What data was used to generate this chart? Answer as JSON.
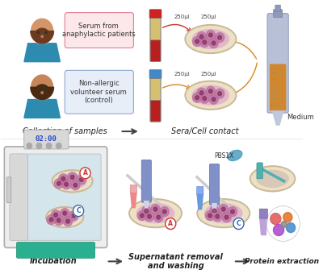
{
  "bg_color": "#ffffff",
  "figure_width": 4.0,
  "figure_height": 3.45,
  "dpi": 100,
  "label_collection_samples": "Collection of samples",
  "label_sera_cell": "Sera/Cell contact",
  "label_incubation": "Incubation",
  "label_supernatant": "Supernatant removal\nand washing",
  "label_protein": "Protein extraction",
  "label_medium": "Medium",
  "label_pbs": "PBS1X",
  "box1_text": "Serum from\nanaphylactic patients",
  "box1_facecolor": "#fce8ea",
  "box1_edgecolor": "#e08090",
  "box2_text": "Non-allergic\nvolunteer serum\n(control)",
  "box2_facecolor": "#e8eef8",
  "box2_edgecolor": "#90aad0",
  "label_250": "250μl",
  "label_A": "A",
  "label_C": "C",
  "arrow_color": "#444444",
  "text_fontsize": 6.5,
  "label_fontsize": 8.0,
  "small_fontsize": 5.0,
  "circle_A_color": "#cc3333",
  "circle_C_color": "#3366aa",
  "skin1": "#d4956a",
  "skin2": "#c8855a",
  "hair1": "#6b3a1f",
  "hair2": "#4a2a10",
  "shirt_color": "#2e8bb0",
  "tube1_top": "#b82020",
  "tube1_mid": "#d4c070",
  "tube1_cap": "#cc2222",
  "tube2_top": "#b82020",
  "tube2_mid": "#d4c070",
  "tube2_cap": "#4488cc",
  "petri_outer": "#ede0c4",
  "petri_inner": "#e0b8c8",
  "cell_color": "#c080a0",
  "pipette_body": "#8090c8",
  "pipette_liquid": "#d08830",
  "incubator_body": "#e8e8e8",
  "incubator_door": "#c0d8e8",
  "incubator_tray": "#2ab090",
  "timer_text": "02:00",
  "timer_color": "#2244cc"
}
